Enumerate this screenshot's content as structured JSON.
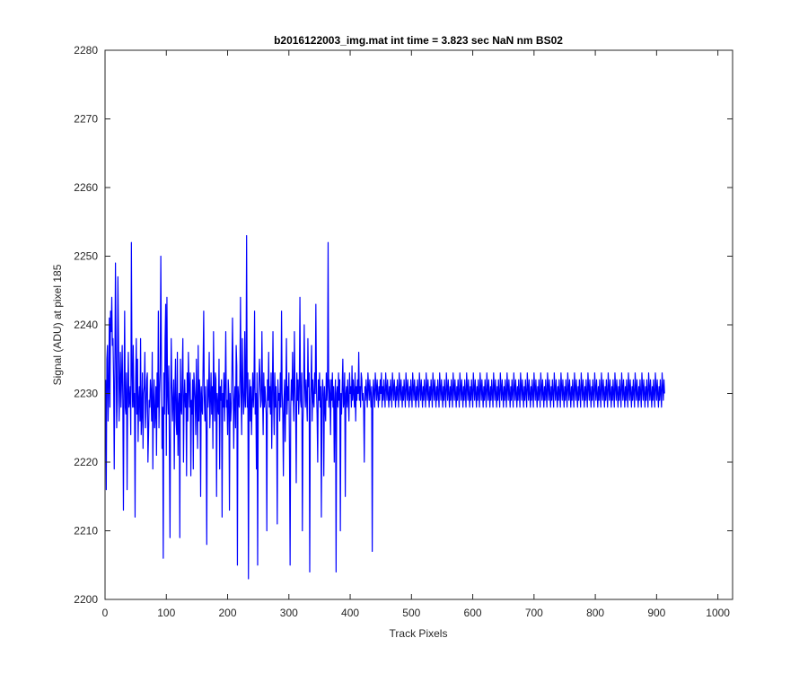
{
  "chart_data": {
    "type": "line",
    "title": "b2016122003_img.mat int time = 3.823 sec  NaN nm BS02",
    "xlabel": "Track Pixels",
    "ylabel": "Signal (ADU) at pixel 185",
    "xlim": [
      0,
      1024
    ],
    "ylim": [
      2200,
      2280
    ],
    "xticks": [
      0,
      100,
      200,
      300,
      400,
      500,
      600,
      700,
      800,
      900,
      1000
    ],
    "yticks": [
      2200,
      2210,
      2220,
      2230,
      2240,
      2250,
      2260,
      2270,
      2280
    ],
    "grid": false,
    "line_color": "#0000ff",
    "series": [
      {
        "x_start": 1,
        "x_step": 1,
        "values": [
          2232,
          2216,
          2235,
          2237,
          2226,
          2231,
          2241,
          2228,
          2242,
          2239,
          2244,
          2237,
          2238,
          2232,
          2219,
          2233,
          2249,
          2236,
          2225,
          2229,
          2247,
          2238,
          2226,
          2231,
          2236,
          2228,
          2232,
          2237,
          2229,
          2213,
          2231,
          2242,
          2228,
          2227,
          2233,
          2216,
          2230,
          2236,
          2228,
          2229,
          2231,
          2224,
          2252,
          2233,
          2228,
          2237,
          2228,
          2230,
          2212,
          2232,
          2238,
          2227,
          2235,
          2223,
          2229,
          2231,
          2226,
          2238,
          2224,
          2227,
          2233,
          2222,
          2230,
          2231,
          2236,
          2225,
          2228,
          2232,
          2233,
          2220,
          2224,
          2229,
          2228,
          2232,
          2230,
          2226,
          2236,
          2219,
          2229,
          2232,
          2225,
          2227,
          2231,
          2221,
          2233,
          2228,
          2242,
          2225,
          2230,
          2233,
          2250,
          2235,
          2222,
          2228,
          2206,
          2233,
          2227,
          2238,
          2243,
          2221,
          2244,
          2230,
          2227,
          2234,
          2222,
          2209,
          2228,
          2238,
          2231,
          2226,
          2229,
          2232,
          2219,
          2230,
          2235,
          2226,
          2224,
          2236,
          2221,
          2228,
          2230,
          2209,
          2235,
          2228,
          2227,
          2233,
          2238,
          2220,
          2229,
          2232,
          2228,
          2230,
          2218,
          2233,
          2226,
          2236,
          2231,
          2228,
          2233,
          2218,
          2229,
          2227,
          2232,
          2219,
          2233,
          2231,
          2229,
          2224,
          2235,
          2228,
          2222,
          2237,
          2226,
          2232,
          2230,
          2215,
          2231,
          2228,
          2227,
          2234,
          2242,
          2229,
          2226,
          2231,
          2224,
          2208,
          2232,
          2228,
          2230,
          2236,
          2225,
          2229,
          2233,
          2227,
          2231,
          2222,
          2239,
          2230,
          2226,
          2233,
          2232,
          2215,
          2230,
          2228,
          2227,
          2235,
          2219,
          2231,
          2229,
          2232,
          2212,
          2230,
          2228,
          2233,
          2226,
          2231,
          2239,
          2228,
          2229,
          2224,
          2232,
          2230,
          2213,
          2230,
          2226,
          2228,
          2233,
          2241,
          2232,
          2222,
          2229,
          2231,
          2225,
          2237,
          2234,
          2205,
          2231,
          2229,
          2228,
          2232,
          2244,
          2230,
          2224,
          2238,
          2231,
          2227,
          2229,
          2239,
          2228,
          2231,
          2253,
          2228,
          2233,
          2203,
          2229,
          2232,
          2226,
          2231,
          2224,
          2229,
          2233,
          2228,
          2231,
          2242,
          2227,
          2230,
          2219,
          2233,
          2205,
          2229,
          2231,
          2235,
          2232,
          2228,
          2229,
          2239,
          2230,
          2224,
          2233,
          2228,
          2231,
          2229,
          2227,
          2210,
          2232,
          2229,
          2236,
          2228,
          2231,
          2227,
          2233,
          2222,
          2230,
          2239,
          2229,
          2224,
          2233,
          2228,
          2231,
          2227,
          2211,
          2232,
          2229,
          2230,
          2226,
          2233,
          2228,
          2242,
          2230,
          2227,
          2218,
          2229,
          2232,
          2223,
          2230,
          2238,
          2227,
          2231,
          2229,
          2233,
          2221,
          2205,
          2228,
          2232,
          2229,
          2236,
          2230,
          2226,
          2239,
          2231,
          2228,
          2217,
          2233,
          2229,
          2232,
          2227,
          2231,
          2244,
          2229,
          2228,
          2233,
          2210,
          2226,
          2230,
          2240,
          2231,
          2228,
          2232,
          2229,
          2226,
          2238,
          2231,
          2233,
          2204,
          2229,
          2231,
          2237,
          2226,
          2232,
          2229,
          2228,
          2233,
          2230,
          2243,
          2231,
          2227,
          2220,
          2232,
          2229,
          2233,
          2228,
          2231,
          2212,
          2229,
          2232,
          2230,
          2218,
          2231,
          2228,
          2226,
          2233,
          2229,
          2231,
          2252,
          2228,
          2232,
          2230,
          2224,
          2232,
          2229,
          2233,
          2228,
          2231,
          2220,
          2229,
          2232,
          2204,
          2230,
          2231,
          2228,
          2233,
          2229,
          2232,
          2210,
          2230,
          2227,
          2231,
          2235,
          2228,
          2229,
          2233,
          2215,
          2230,
          2231,
          2228,
          2232,
          2229,
          2226,
          2233,
          2230,
          2231,
          2228,
          2234,
          2229,
          2232,
          2230,
          2228,
          2233,
          2226,
          2231,
          2229,
          2232,
          2230,
          2236,
          2229,
          2231,
          2228,
          2233,
          2232,
          2229,
          2230,
          2228,
          2220,
          2231,
          2229,
          2232,
          2230,
          2228,
          2233,
          2231,
          2229,
          2232,
          2230,
          2228,
          2231,
          2207,
          2229,
          2232,
          2230,
          2228,
          2233,
          2231,
          2229,
          2232,
          2230,
          2228,
          2231,
          2229,
          2232,
          2230,
          2233,
          2228,
          2231,
          2229,
          2232,
          2230,
          2228,
          2233,
          2231,
          2229,
          2232,
          2230,
          2228,
          2231,
          2229,
          2232,
          2230,
          2228,
          2233,
          2231,
          2229,
          2232,
          2230,
          2228,
          2231,
          2229,
          2232,
          2230,
          2228,
          2233,
          2231,
          2229,
          2232,
          2230,
          2228,
          2231,
          2229,
          2232,
          2230,
          2228,
          2233,
          2231,
          2229,
          2232,
          2230,
          2228,
          2231,
          2229,
          2232,
          2230,
          2228,
          2233,
          2231,
          2229,
          2232,
          2230,
          2228,
          2231,
          2229,
          2232,
          2230,
          2228,
          2233,
          2231,
          2229,
          2232,
          2230,
          2228,
          2231,
          2229,
          2232,
          2230,
          2228,
          2233,
          2231,
          2229,
          2232,
          2230,
          2228,
          2231,
          2229,
          2232,
          2230,
          2228,
          2233,
          2231,
          2229,
          2232,
          2230,
          2228,
          2231,
          2229,
          2232,
          2230,
          2228,
          2233,
          2231,
          2229,
          2232,
          2230,
          2228,
          2231,
          2229,
          2232,
          2230,
          2228,
          2233,
          2231,
          2229,
          2232,
          2230,
          2228,
          2231,
          2229,
          2232,
          2230,
          2228,
          2233,
          2231,
          2229,
          2232,
          2230,
          2228,
          2231,
          2229,
          2232,
          2230,
          2228,
          2233,
          2231,
          2229,
          2232,
          2230,
          2228,
          2231,
          2229,
          2232,
          2230,
          2228,
          2233,
          2231,
          2229,
          2232,
          2230,
          2228,
          2231,
          2229,
          2232,
          2230,
          2228,
          2233,
          2231,
          2229,
          2232,
          2230,
          2228,
          2231,
          2229,
          2232,
          2230,
          2228,
          2233,
          2231,
          2229,
          2232,
          2230,
          2228,
          2231,
          2229,
          2232,
          2230,
          2228,
          2233,
          2231,
          2229,
          2232,
          2230,
          2228,
          2231,
          2229,
          2232,
          2230,
          2228,
          2233,
          2231,
          2229,
          2232,
          2230,
          2228,
          2231,
          2229,
          2232,
          2230,
          2228,
          2233,
          2231,
          2229,
          2232,
          2230,
          2228,
          2231,
          2229,
          2232,
          2230,
          2228,
          2233,
          2231,
          2229,
          2232,
          2230,
          2228,
          2231,
          2229,
          2232,
          2230,
          2228,
          2233,
          2231,
          2229,
          2232,
          2230,
          2228,
          2231,
          2229,
          2232,
          2230,
          2228,
          2233,
          2231,
          2229,
          2232,
          2230,
          2228,
          2231,
          2229,
          2232,
          2230,
          2228,
          2233,
          2231,
          2229,
          2232,
          2230,
          2228,
          2231,
          2229,
          2232,
          2230,
          2228,
          2233,
          2231,
          2229,
          2232,
          2230,
          2228,
          2231,
          2229,
          2232,
          2230,
          2228,
          2233,
          2231,
          2229,
          2232,
          2230,
          2228,
          2231,
          2229,
          2232,
          2230,
          2228,
          2233,
          2231,
          2229,
          2232,
          2230,
          2228,
          2231,
          2229,
          2232,
          2230,
          2228,
          2233,
          2231,
          2229,
          2232,
          2230,
          2228,
          2231,
          2229,
          2232,
          2230,
          2228,
          2233,
          2231,
          2229,
          2232,
          2230,
          2228,
          2231,
          2229,
          2232,
          2230,
          2228,
          2233,
          2231,
          2229,
          2232,
          2230,
          2228,
          2231,
          2229,
          2232,
          2230,
          2228,
          2233,
          2231,
          2229,
          2232,
          2230,
          2228,
          2231,
          2229,
          2232,
          2230,
          2228,
          2233,
          2231,
          2229,
          2232,
          2230,
          2228,
          2231,
          2229,
          2232,
          2230,
          2228,
          2233,
          2231,
          2229,
          2232,
          2230,
          2228,
          2231,
          2229,
          2232,
          2230,
          2228,
          2233,
          2231,
          2229,
          2232,
          2230,
          2228,
          2231,
          2229,
          2232,
          2230,
          2228,
          2233,
          2231,
          2229,
          2232,
          2230,
          2228,
          2231,
          2229,
          2232,
          2230,
          2228,
          2233,
          2231,
          2229,
          2232,
          2230,
          2228,
          2231,
          2229,
          2232,
          2230,
          2228,
          2233,
          2231,
          2229,
          2232,
          2230,
          2228,
          2231,
          2229,
          2232,
          2230,
          2228,
          2233,
          2231,
          2229,
          2232,
          2230,
          2228,
          2231,
          2229,
          2232,
          2230,
          2228,
          2233,
          2231,
          2229,
          2232,
          2230,
          2228,
          2231,
          2229,
          2232,
          2230,
          2228,
          2233,
          2231,
          2229,
          2232,
          2230,
          2228,
          2231,
          2229,
          2232,
          2230,
          2228,
          2233,
          2231,
          2229,
          2232,
          2230,
          2228,
          2231,
          2229,
          2232,
          2230,
          2228,
          2233,
          2231,
          2229,
          2232,
          2230,
          2228,
          2231,
          2229,
          2232,
          2230,
          2228,
          2233,
          2231,
          2229,
          2232,
          2230,
          2228,
          2231,
          2229,
          2232,
          2230,
          2228,
          2233,
          2231,
          2229,
          2232,
          2230
        ]
      }
    ]
  }
}
